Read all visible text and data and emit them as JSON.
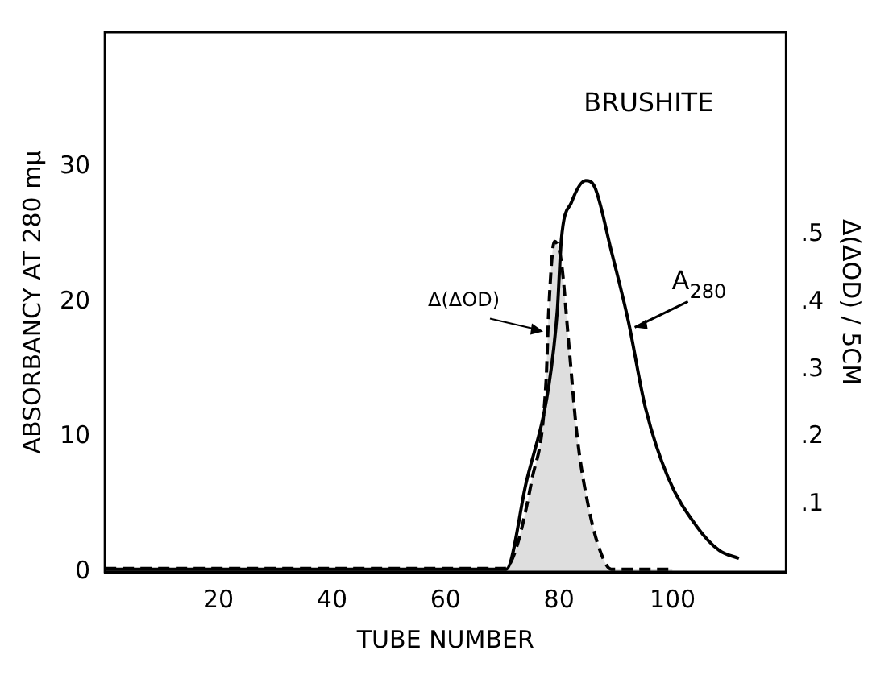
{
  "chart_data": {
    "type": "line",
    "xlabel": "TUBE NUMBER",
    "ylabel": "ABSORBANCY AT 280 mμ",
    "y2label": "Δ(ΔOD) / 5CM",
    "annotations": [
      "BRUSHITE"
    ],
    "xlim": [
      0,
      120
    ],
    "xticks": [
      20,
      40,
      60,
      80,
      100
    ],
    "ylim": [
      0,
      40
    ],
    "yticks": [
      0,
      10,
      20,
      30
    ],
    "y2lim": [
      0,
      0.8
    ],
    "y2ticks": [
      {
        "value": 0.1,
        "label": ".1"
      },
      {
        "value": 0.2,
        "label": ".2"
      },
      {
        "value": 0.3,
        "label": ".3"
      },
      {
        "value": 0.4,
        "label": ".4"
      },
      {
        "value": 0.5,
        "label": ".5"
      }
    ],
    "grid": false,
    "legend": false,
    "series": [
      {
        "name": "A$_{280}$",
        "color": "#000000",
        "line_style": "solid",
        "x": [
          0,
          20,
          40,
          60,
          70.7,
          74.2,
          78.2,
          79.7,
          80.4,
          82.2,
          84.7,
          86.2,
          89.2,
          92.2,
          95.2,
          99.2,
          104.2,
          108.2,
          111.7
        ],
        "values": [
          0.2,
          0.2,
          0.2,
          0.2,
          0.2,
          6.6,
          13.8,
          19.4,
          24.6,
          27.4,
          29.0,
          28.6,
          23.8,
          18.6,
          12.2,
          7.0,
          3.4,
          1.6,
          1.0
        ]
      },
      {
        "name": "Δ(ΔOD)",
        "type": "area",
        "color": "#000000",
        "line_style": "dashed",
        "axis": "y2",
        "x": [
          0,
          20,
          40,
          60,
          70,
          71.2,
          75.2,
          77.7,
          78.2,
          79.2,
          80.4,
          81.7,
          83.2,
          85.2,
          87.2,
          89.2,
          95,
          100
        ],
        "values": [
          0.005,
          0.005,
          0.005,
          0.005,
          0.005,
          0.01,
          0.136,
          0.28,
          0.39,
          0.49,
          0.46,
          0.34,
          0.2,
          0.096,
          0.032,
          0.004,
          0.004,
          0.004
        ]
      }
    ]
  }
}
